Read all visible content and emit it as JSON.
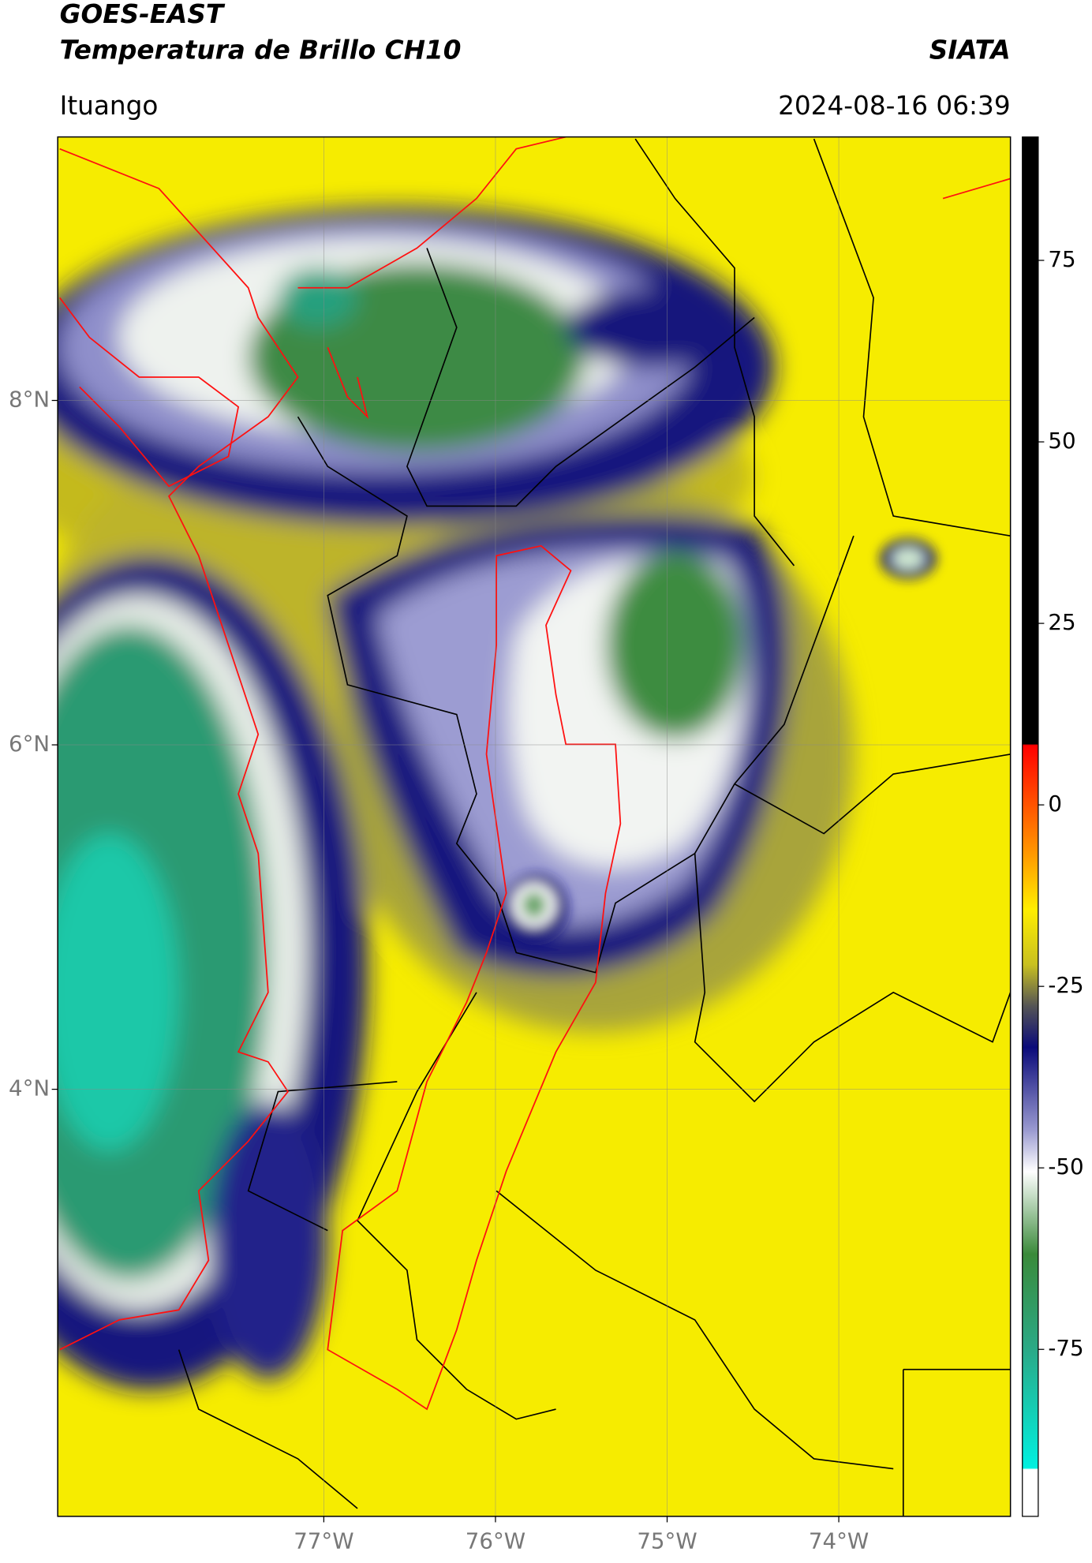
{
  "header": {
    "title": "GOES-EAST",
    "subtitle": "Temperatura de Brillo CH10",
    "source": "SIATA",
    "region": "Ituango",
    "timestamp": "2024-08-16 06:39"
  },
  "map": {
    "xlim": [
      -78.55,
      -73.0
    ],
    "ylim": [
      1.52,
      9.53
    ],
    "xticks": [
      {
        "value": -77,
        "label": "77°W"
      },
      {
        "value": -76,
        "label": "76°W"
      },
      {
        "value": -75,
        "label": "75°W"
      },
      {
        "value": -74,
        "label": "74°W"
      }
    ],
    "yticks": [
      {
        "value": 8,
        "label": "8°N"
      },
      {
        "value": 6,
        "label": "6°N"
      },
      {
        "value": 4,
        "label": "4°N"
      }
    ],
    "grid": true
  },
  "colorbar": {
    "lim": [
      -98,
      92
    ],
    "ticks": [
      75,
      50,
      25,
      0,
      -25,
      -50,
      -75
    ]
  }
}
